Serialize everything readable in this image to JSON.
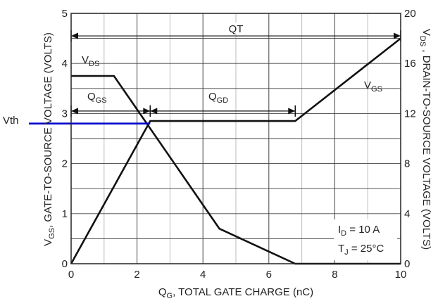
{
  "chart_data": {
    "type": "line",
    "xlabel": {
      "main": "Q",
      "sub": "G",
      "rest": ", TOTAL GATE CHARGE (nC)"
    },
    "ylabel_left": {
      "main": "V",
      "sub": "GS",
      "rest": ", GATE-TO-SOURCE VOLTAGE (VOLTS)"
    },
    "ylabel_right": {
      "main": "V",
      "sub": "DS",
      "rest": " , DRAIN-TO-SOURCE VOLTAGE (VOLTS)"
    },
    "xlim": [
      0,
      10
    ],
    "ylim_left": [
      0,
      5
    ],
    "ylim_right": [
      0,
      20
    ],
    "x_ticks": [
      "0",
      "2",
      "4",
      "6",
      "8",
      "10"
    ],
    "y_left_ticks": [
      "0",
      "1",
      "2",
      "3",
      "4",
      "5"
    ],
    "y_right_ticks": [
      "0",
      "4",
      "8",
      "12",
      "16",
      "20"
    ],
    "grid": true,
    "series": [
      {
        "name": "VGS",
        "axis": "left",
        "x": [
          0,
          2.4,
          6.8,
          10
        ],
        "y": [
          0,
          2.85,
          2.85,
          4.5
        ]
      },
      {
        "name": "VDS",
        "axis": "right",
        "x": [
          0,
          1.3,
          4.5,
          6.8,
          10
        ],
        "y": [
          15,
          15,
          2.8,
          0,
          0
        ]
      }
    ],
    "series_labels": {
      "vds": {
        "main": "V",
        "sub": "DS"
      },
      "vgs": {
        "main": "V",
        "sub": "GS"
      }
    },
    "intervals": {
      "qt": {
        "label": "QT",
        "from": 0,
        "to": 10,
        "y": 4.55
      },
      "qgs": {
        "main": "Q",
        "sub": "GS",
        "from": 0,
        "to": 2.4,
        "y": 3.05
      },
      "qgd": {
        "main": "Q",
        "sub": "GD",
        "from": 2.4,
        "to": 6.8,
        "y": 3.05
      }
    },
    "vth": {
      "label": "Vth",
      "y": 2.8,
      "color": "#0000cc"
    },
    "conditions": [
      {
        "main": "I",
        "sub": "D",
        "rest": " = 10 A"
      },
      {
        "main": "T",
        "sub": "J",
        "rest": " = 25°C"
      }
    ]
  }
}
